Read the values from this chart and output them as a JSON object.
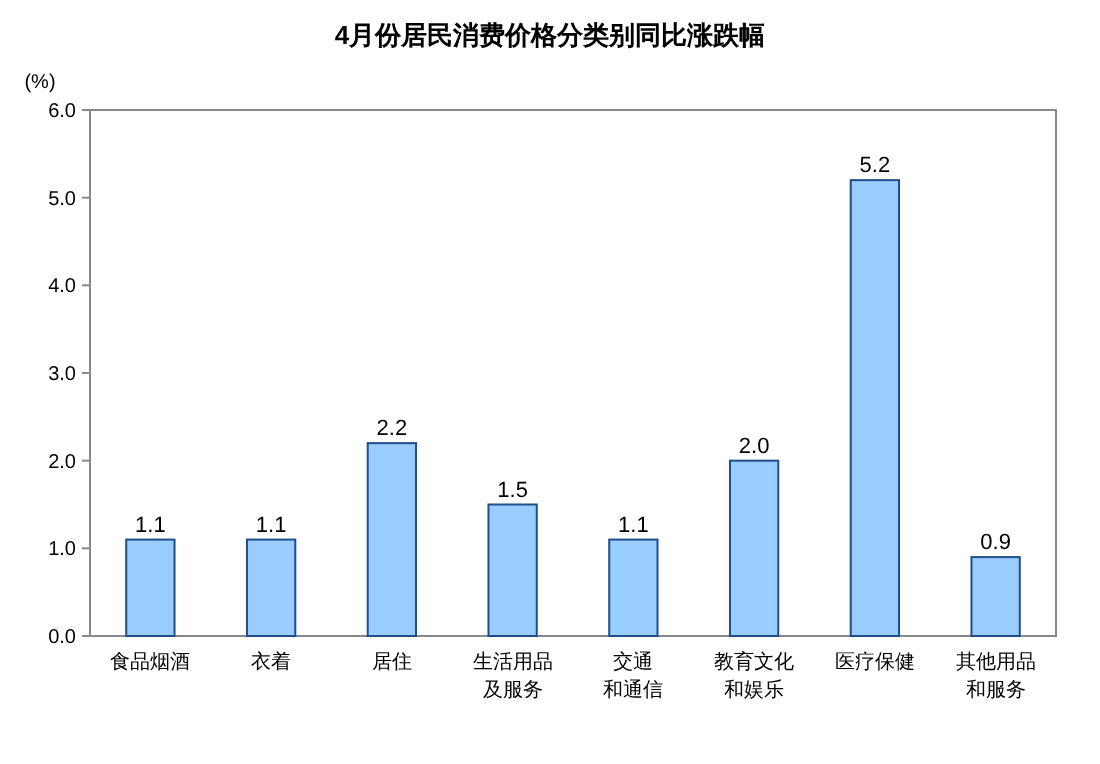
{
  "chart_data": {
    "type": "bar",
    "title": "4月份居民消费价格分类别同比涨跌幅",
    "ylabel": "(%)",
    "categories": [
      "食品烟酒",
      "衣着",
      "居住",
      "生活用品及服务",
      "交通和通信",
      "教育文化和娱乐",
      "医疗保健",
      "其他用品和服务"
    ],
    "values": [
      1.1,
      1.1,
      2.2,
      1.5,
      1.1,
      2.0,
      5.2,
      0.9
    ],
    "value_labels": [
      "1.1",
      "1.1",
      "2.2",
      "1.5",
      "1.1",
      "2.0",
      "5.2",
      "0.9"
    ],
    "color": "#99ccff",
    "ylim": [
      0,
      6
    ],
    "yticks": [
      {
        "value": 0,
        "label": "0.0"
      },
      {
        "value": 1,
        "label": "1.0"
      },
      {
        "value": 2,
        "label": "2.0"
      },
      {
        "value": 3,
        "label": "3.0"
      },
      {
        "value": 4,
        "label": "4.0"
      },
      {
        "value": 5,
        "label": "5.0"
      },
      {
        "value": 6,
        "label": "6.0"
      }
    ],
    "grid": false
  }
}
